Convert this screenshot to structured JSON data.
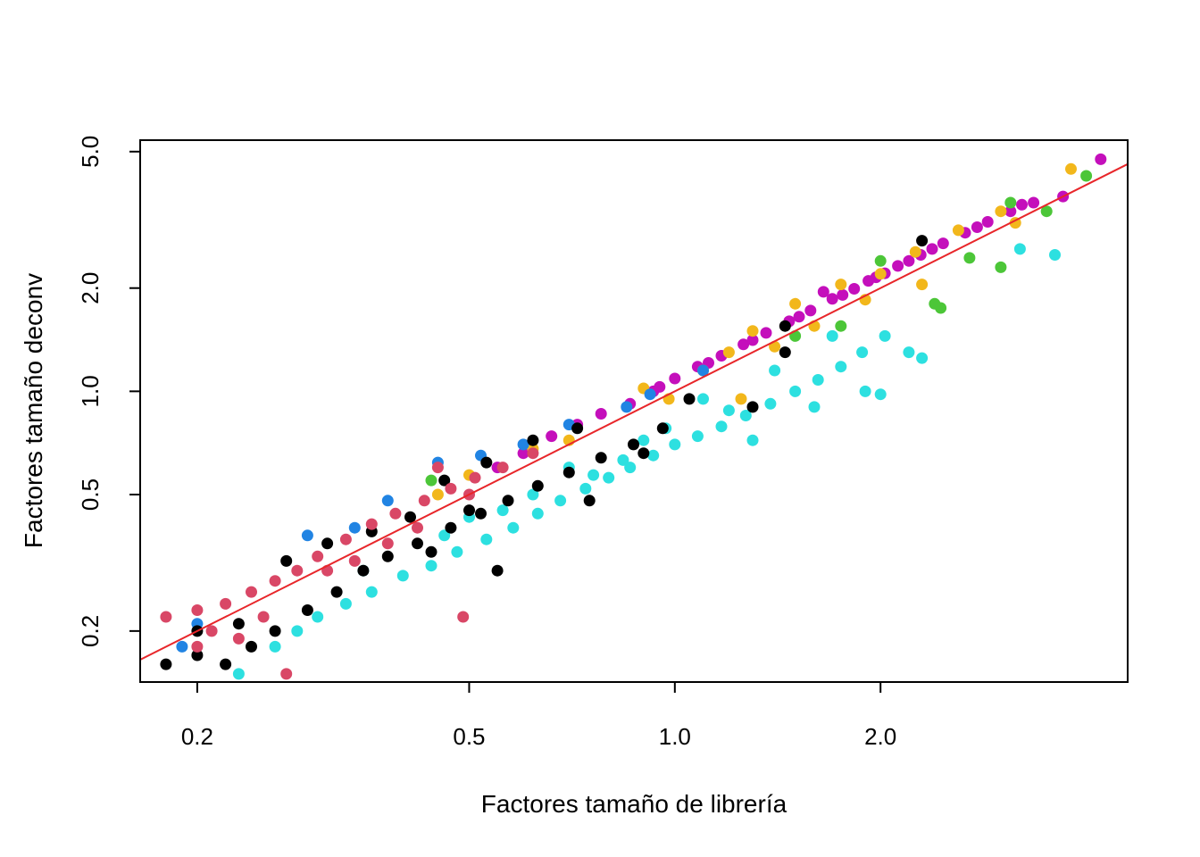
{
  "chart_data": {
    "type": "scatter",
    "title": "",
    "xlabel": "Factores tamaño de librería",
    "ylabel": "Factores tamaño deconv",
    "x_scale": "log",
    "y_scale": "log",
    "xlim": [
      0.165,
      4.6
    ],
    "ylim": [
      0.142,
      5.4
    ],
    "x_ticks": [
      {
        "value": 0.2,
        "label": "0.2"
      },
      {
        "value": 0.5,
        "label": "0.5"
      },
      {
        "value": 1.0,
        "label": "1.0"
      },
      {
        "value": 2.0,
        "label": "2.0"
      }
    ],
    "y_ticks": [
      {
        "value": 0.2,
        "label": "0.2"
      },
      {
        "value": 0.5,
        "label": "0.5"
      },
      {
        "value": 1.0,
        "label": "1.0"
      },
      {
        "value": 2.0,
        "label": "2.0"
      },
      {
        "value": 5.0,
        "label": "5.0"
      }
    ],
    "grid": false,
    "legend": "none",
    "reference_line": {
      "type": "identity",
      "slope": 1,
      "intercept": 0,
      "color": "#e8262a"
    },
    "series": [
      {
        "color": "#c40fbb",
        "points": [
          [
            0.78,
            0.86
          ],
          [
            0.86,
            0.92
          ],
          [
            0.93,
            1.0
          ],
          [
            1.0,
            1.09
          ],
          [
            1.08,
            1.18
          ],
          [
            1.17,
            1.27
          ],
          [
            1.26,
            1.37
          ],
          [
            1.36,
            1.48
          ],
          [
            1.47,
            1.6
          ],
          [
            1.58,
            1.72
          ],
          [
            1.7,
            1.86
          ],
          [
            1.83,
            1.99
          ],
          [
            1.97,
            2.15
          ],
          [
            2.12,
            2.32
          ],
          [
            2.29,
            2.5
          ],
          [
            2.47,
            2.7
          ],
          [
            2.66,
            2.9
          ],
          [
            2.87,
            3.12
          ],
          [
            3.1,
            3.35
          ],
          [
            3.35,
            3.55
          ],
          [
            4.2,
            4.75
          ],
          [
            3.7,
            3.7
          ],
          [
            0.72,
            0.8
          ],
          [
            0.66,
            0.74
          ],
          [
            0.6,
            0.66
          ],
          [
            0.55,
            0.6
          ],
          [
            0.95,
            1.03
          ],
          [
            1.12,
            1.21
          ],
          [
            1.3,
            1.41
          ],
          [
            1.52,
            1.65
          ],
          [
            1.76,
            1.91
          ],
          [
            2.03,
            2.21
          ],
          [
            2.38,
            2.6
          ],
          [
            2.77,
            3.01
          ],
          [
            3.22,
            3.5
          ],
          [
            1.65,
            1.95
          ],
          [
            1.92,
            2.1
          ],
          [
            2.2,
            2.4
          ]
        ]
      },
      {
        "color": "#f2b71b",
        "points": [
          [
            1.3,
            1.5
          ],
          [
            1.5,
            1.8
          ],
          [
            1.75,
            2.05
          ],
          [
            2.0,
            2.2
          ],
          [
            2.25,
            2.55
          ],
          [
            2.6,
            2.95
          ],
          [
            3.0,
            3.35
          ],
          [
            3.8,
            4.45
          ],
          [
            3.15,
            3.1
          ],
          [
            1.2,
            1.3
          ],
          [
            1.1,
            1.15
          ],
          [
            0.98,
            0.95
          ],
          [
            0.9,
            1.02
          ],
          [
            0.7,
            0.72
          ],
          [
            0.62,
            0.68
          ],
          [
            0.5,
            0.57
          ],
          [
            0.45,
            0.5
          ],
          [
            2.3,
            2.05
          ],
          [
            1.9,
            1.85
          ],
          [
            1.6,
            1.55
          ],
          [
            1.4,
            1.35
          ],
          [
            1.25,
            0.95
          ]
        ]
      },
      {
        "color": "#4cc638",
        "points": [
          [
            2.4,
            1.8
          ],
          [
            2.45,
            1.75
          ],
          [
            3.0,
            2.3
          ],
          [
            3.5,
            3.35
          ],
          [
            4.0,
            4.25
          ],
          [
            3.1,
            3.55
          ],
          [
            2.7,
            2.45
          ],
          [
            1.75,
            1.55
          ],
          [
            1.5,
            1.45
          ],
          [
            2.0,
            2.4
          ],
          [
            0.44,
            0.55
          ]
        ]
      },
      {
        "color": "#2184e3",
        "points": [
          [
            0.45,
            0.62
          ],
          [
            0.34,
            0.4
          ],
          [
            0.29,
            0.38
          ],
          [
            0.52,
            0.65
          ],
          [
            0.6,
            0.7
          ],
          [
            0.85,
            0.9
          ],
          [
            0.92,
            0.98
          ],
          [
            1.1,
            1.15
          ],
          [
            0.7,
            0.8
          ],
          [
            0.38,
            0.48
          ],
          [
            0.2,
            0.21
          ],
          [
            0.19,
            0.18
          ]
        ]
      },
      {
        "color": "#2de0e0",
        "points": [
          [
            0.26,
            0.18
          ],
          [
            0.28,
            0.2
          ],
          [
            0.3,
            0.22
          ],
          [
            0.33,
            0.24
          ],
          [
            0.36,
            0.26
          ],
          [
            0.4,
            0.29
          ],
          [
            0.44,
            0.31
          ],
          [
            0.48,
            0.34
          ],
          [
            0.53,
            0.37
          ],
          [
            0.58,
            0.4
          ],
          [
            0.63,
            0.44
          ],
          [
            0.68,
            0.48
          ],
          [
            0.74,
            0.52
          ],
          [
            0.8,
            0.56
          ],
          [
            0.86,
            0.6
          ],
          [
            0.93,
            0.65
          ],
          [
            1.0,
            0.7
          ],
          [
            1.08,
            0.74
          ],
          [
            1.17,
            0.79
          ],
          [
            1.27,
            0.85
          ],
          [
            1.38,
            0.92
          ],
          [
            1.5,
            1.0
          ],
          [
            1.62,
            1.08
          ],
          [
            1.75,
            1.18
          ],
          [
            1.88,
            1.3
          ],
          [
            2.03,
            1.45
          ],
          [
            2.2,
            1.3
          ],
          [
            2.3,
            1.25
          ],
          [
            1.9,
            1.0
          ],
          [
            3.6,
            2.5
          ],
          [
            3.2,
            2.6
          ],
          [
            2.0,
            0.98
          ],
          [
            1.6,
            0.9
          ],
          [
            1.3,
            0.72
          ],
          [
            0.23,
            0.15
          ],
          [
            0.35,
            0.3
          ],
          [
            0.5,
            0.43
          ],
          [
            0.7,
            0.6
          ],
          [
            0.9,
            0.72
          ],
          [
            1.1,
            0.95
          ],
          [
            1.4,
            1.15
          ],
          [
            1.7,
            1.45
          ],
          [
            0.62,
            0.5
          ],
          [
            0.84,
            0.63
          ],
          [
            0.46,
            0.38
          ],
          [
            0.56,
            0.45
          ],
          [
            0.76,
            0.57
          ],
          [
            0.97,
            0.78
          ],
          [
            1.2,
            0.88
          ]
        ]
      },
      {
        "color": "#000000",
        "points": [
          [
            0.18,
            0.16
          ],
          [
            0.2,
            0.17
          ],
          [
            0.22,
            0.16
          ],
          [
            0.24,
            0.18
          ],
          [
            0.26,
            0.2
          ],
          [
            0.29,
            0.23
          ],
          [
            0.32,
            0.26
          ],
          [
            0.35,
            0.3
          ],
          [
            0.38,
            0.33
          ],
          [
            0.42,
            0.36
          ],
          [
            0.47,
            0.4
          ],
          [
            0.52,
            0.44
          ],
          [
            0.57,
            0.48
          ],
          [
            0.63,
            0.53
          ],
          [
            0.7,
            0.58
          ],
          [
            0.78,
            0.64
          ],
          [
            0.87,
            0.7
          ],
          [
            0.96,
            0.78
          ],
          [
            1.05,
            0.95
          ],
          [
            1.3,
            0.9
          ],
          [
            1.45,
            1.3
          ],
          [
            1.45,
            1.55
          ],
          [
            2.3,
            2.75
          ],
          [
            0.27,
            0.32
          ],
          [
            0.31,
            0.36
          ],
          [
            0.36,
            0.39
          ],
          [
            0.41,
            0.43
          ],
          [
            0.46,
            0.55
          ],
          [
            0.53,
            0.62
          ],
          [
            0.62,
            0.72
          ],
          [
            0.72,
            0.78
          ],
          [
            0.55,
            0.3
          ],
          [
            0.5,
            0.45
          ],
          [
            0.44,
            0.34
          ],
          [
            0.23,
            0.21
          ],
          [
            0.2,
            0.2
          ],
          [
            0.75,
            0.48
          ],
          [
            0.9,
            0.66
          ]
        ]
      },
      {
        "color": "#d94766",
        "points": [
          [
            0.18,
            0.22
          ],
          [
            0.2,
            0.23
          ],
          [
            0.22,
            0.24
          ],
          [
            0.24,
            0.26
          ],
          [
            0.26,
            0.28
          ],
          [
            0.28,
            0.3
          ],
          [
            0.3,
            0.33
          ],
          [
            0.33,
            0.37
          ],
          [
            0.36,
            0.41
          ],
          [
            0.39,
            0.44
          ],
          [
            0.43,
            0.48
          ],
          [
            0.47,
            0.52
          ],
          [
            0.51,
            0.56
          ],
          [
            0.56,
            0.6
          ],
          [
            0.62,
            0.66
          ],
          [
            0.27,
            0.15
          ],
          [
            0.49,
            0.22
          ],
          [
            0.21,
            0.2
          ],
          [
            0.25,
            0.22
          ],
          [
            0.31,
            0.3
          ],
          [
            0.34,
            0.32
          ],
          [
            0.38,
            0.36
          ],
          [
            0.42,
            0.4
          ],
          [
            0.45,
            0.6
          ],
          [
            0.5,
            0.5
          ],
          [
            0.2,
            0.18
          ],
          [
            0.23,
            0.19
          ]
        ]
      }
    ]
  }
}
